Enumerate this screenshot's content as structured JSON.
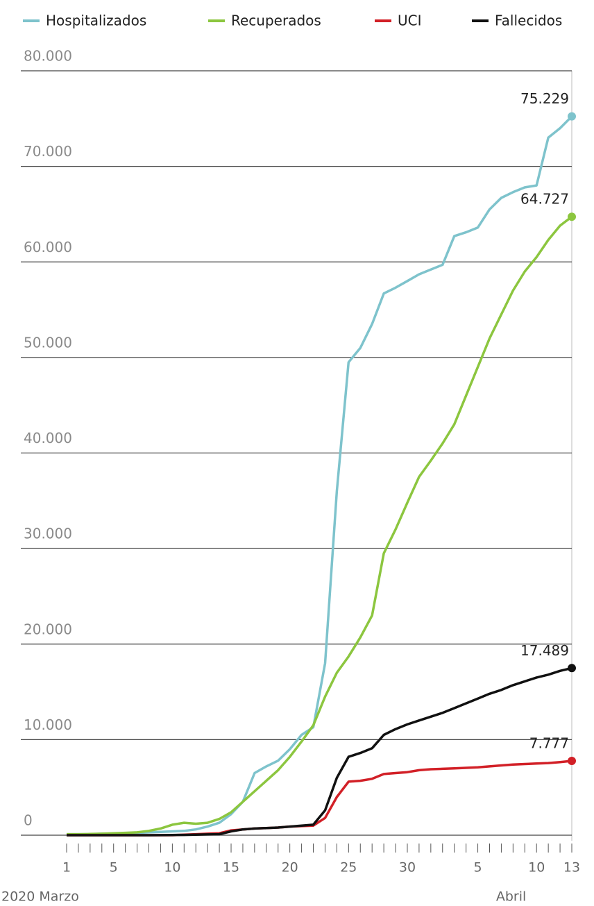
{
  "chart_data": {
    "type": "line",
    "categories": [
      "1",
      null,
      null,
      null,
      "5",
      null,
      null,
      null,
      null,
      "10",
      null,
      null,
      null,
      null,
      "15",
      null,
      null,
      null,
      null,
      "20",
      null,
      null,
      null,
      null,
      "25",
      null,
      null,
      null,
      null,
      "30",
      null,
      null,
      null,
      null,
      null,
      "5",
      null,
      null,
      null,
      null,
      "10",
      null,
      null,
      "13"
    ],
    "x_group_labels": [
      "2020 Marzo",
      "Abril"
    ],
    "series": [
      {
        "name": "Hospitalizados",
        "color": "#7ec3cc",
        "values": [
          100,
          100,
          100,
          150,
          150,
          200,
          250,
          300,
          350,
          400,
          450,
          600,
          900,
          1300,
          2200,
          3500,
          6500,
          7200,
          7800,
          9000,
          10500,
          11300,
          18000,
          36000,
          49500,
          51000,
          53500,
          56700,
          57300,
          58000,
          58700,
          59200,
          59700,
          62700,
          63100,
          63600,
          65500,
          66700,
          67300,
          67800,
          68000,
          73000,
          74000,
          75229
        ],
        "value_labels": [
          null,
          null,
          null,
          null,
          null,
          null,
          null,
          null,
          null,
          null,
          null,
          null,
          null,
          null,
          null,
          null,
          null,
          null,
          null,
          null,
          null,
          null,
          null,
          null,
          null,
          null,
          null,
          null,
          null,
          null,
          null,
          null,
          null,
          null,
          null,
          null,
          null,
          null,
          null,
          null,
          null,
          null,
          null,
          "75.229"
        ]
      },
      {
        "name": "Recuperados",
        "color": "#8cc63f",
        "values": [
          100,
          100,
          120,
          150,
          200,
          250,
          300,
          450,
          700,
          1100,
          1300,
          1200,
          1300,
          1700,
          2400,
          3500,
          4600,
          5700,
          6800,
          8200,
          9800,
          11500,
          14500,
          17000,
          18700,
          20700,
          23000,
          29500,
          32000,
          34800,
          37500,
          39200,
          41000,
          43000,
          46000,
          49000,
          52000,
          54500,
          57000,
          59000,
          60500,
          62300,
          63800,
          64727
        ],
        "value_labels": [
          null,
          null,
          null,
          null,
          null,
          null,
          null,
          null,
          null,
          null,
          null,
          null,
          null,
          null,
          null,
          null,
          null,
          null,
          null,
          null,
          null,
          null,
          null,
          null,
          null,
          null,
          null,
          null,
          null,
          null,
          null,
          null,
          null,
          null,
          null,
          null,
          null,
          null,
          null,
          null,
          null,
          null,
          null,
          "64.727"
        ]
      },
      {
        "name": "UCI",
        "color": "#d22027",
        "values": [
          0,
          0,
          0,
          0,
          0,
          0,
          0,
          0,
          0,
          0,
          50,
          100,
          150,
          200,
          500,
          600,
          700,
          750,
          800,
          900,
          950,
          1000,
          1800,
          4000,
          5600,
          5700,
          5900,
          6400,
          6500,
          6600,
          6800,
          6900,
          6950,
          7000,
          7050,
          7100,
          7200,
          7300,
          7400,
          7450,
          7500,
          7550,
          7650,
          7777
        ],
        "value_labels": [
          null,
          null,
          null,
          null,
          null,
          null,
          null,
          null,
          null,
          null,
          null,
          null,
          null,
          null,
          null,
          null,
          null,
          null,
          null,
          null,
          null,
          null,
          null,
          null,
          null,
          null,
          null,
          null,
          null,
          null,
          null,
          null,
          null,
          null,
          null,
          null,
          null,
          null,
          null,
          null,
          null,
          null,
          null,
          "7.777"
        ]
      },
      {
        "name": "Fallecidos",
        "color": "#111111",
        "values": [
          0,
          0,
          0,
          0,
          0,
          0,
          0,
          0,
          10,
          20,
          30,
          50,
          80,
          100,
          400,
          600,
          700,
          750,
          800,
          900,
          1000,
          1100,
          2600,
          6000,
          8200,
          8600,
          9100,
          10500,
          11100,
          11600,
          12000,
          12400,
          12800,
          13300,
          13800,
          14300,
          14800,
          15200,
          15700,
          16100,
          16500,
          16800,
          17200,
          17489
        ],
        "value_labels": [
          null,
          null,
          null,
          null,
          null,
          null,
          null,
          null,
          null,
          null,
          null,
          null,
          null,
          null,
          null,
          null,
          null,
          null,
          null,
          null,
          null,
          null,
          null,
          null,
          null,
          null,
          null,
          null,
          null,
          null,
          null,
          null,
          null,
          null,
          null,
          null,
          null,
          null,
          null,
          null,
          null,
          null,
          null,
          "17.489"
        ]
      }
    ],
    "ylim": [
      0,
      80000
    ],
    "yticks": [
      0,
      {
        "value": 10000,
        "label": "10.000"
      },
      {
        "value": 20000,
        "label": "20.000"
      },
      {
        "value": 30000,
        "label": "30.000"
      },
      {
        "value": 40000,
        "label": "40.000"
      },
      {
        "value": 50000,
        "label": "50.000"
      },
      {
        "value": 60000,
        "label": "60.000"
      },
      {
        "value": 70000,
        "label": "70.000"
      },
      {
        "value": 80000,
        "label": "80.000"
      }
    ],
    "grid": true
  }
}
